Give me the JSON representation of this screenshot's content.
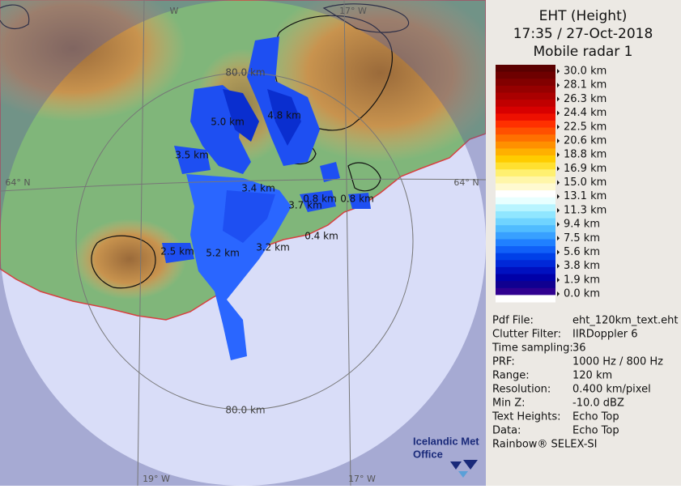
{
  "header": {
    "title": "EHT (Height)",
    "time": "17:35 / 27-Oct-2018",
    "radar": "Mobile radar 1"
  },
  "legend": {
    "labels": [
      "30.0 km",
      "28.1 km",
      "26.3 km",
      "24.4 km",
      "22.5 km",
      "20.6 km",
      "18.8 km",
      "16.9 km",
      "15.0 km",
      "13.1 km",
      "11.3 km",
      "9.4 km",
      "7.5 km",
      "5.6 km",
      "3.8 km",
      "1.9 km",
      "0.0 km"
    ]
  },
  "info": {
    "rows": [
      [
        "Pdf File:",
        "eht_120km_text.eht"
      ],
      [
        "Clutter Filter:",
        "IIRDoppler 6"
      ],
      [
        "Time sampling:",
        "36"
      ],
      [
        "PRF:",
        "1000 Hz / 800 Hz"
      ],
      [
        "Range:",
        "120 km"
      ],
      [
        "Resolution:",
        "0.400 km/pixel"
      ],
      [
        "Min Z:",
        "-10.0 dBZ"
      ],
      [
        "Text Heights:",
        "Echo Top"
      ],
      [
        "Data:",
        "Echo Top"
      ]
    ],
    "footer": "Rainbow® SELEX-SI"
  },
  "map": {
    "grid_labels": [
      "W",
      "17° W",
      "64° N",
      "64° N",
      "19° W",
      "17° W"
    ],
    "range_labels": [
      "80.0 km",
      "80.0 km"
    ],
    "echo_labels": [
      "5.0 km",
      "4.8 km",
      "3.5 km",
      "3.4 km",
      "0.8 km",
      "0.8 km",
      "3.7 km",
      "0.4 km",
      "3.2 km",
      "2.5 km",
      "5.2 km"
    ]
  },
  "logo": {
    "lines": [
      "Icelandic Met",
      "Office"
    ]
  }
}
